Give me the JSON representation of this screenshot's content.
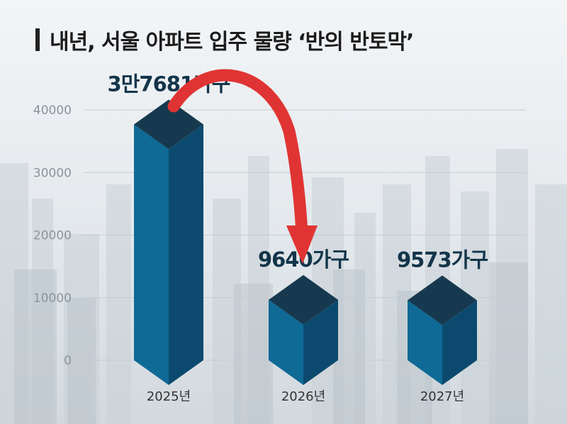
{
  "title": "내년, 서울 아파트 입주 물량 ‘반의 반토막’",
  "chart_data": {
    "type": "bar",
    "categories": [
      "2025년",
      "2026년",
      "2027년"
    ],
    "values": [
      37681,
      9640,
      9573
    ],
    "data_labels": [
      "3만7681가구",
      "9640가구",
      "9573가구"
    ],
    "yticks": [
      0,
      10000,
      20000,
      30000,
      40000
    ],
    "ylim": [
      0,
      40000
    ],
    "grid": true,
    "annotation": "red curved arrow from 2025 bar to 2026 bar"
  },
  "colors": {
    "bar_front": "#0f6a96",
    "bar_side": "#0b4a6e",
    "bar_top": "#17394f",
    "arrow": "#e03434",
    "grid": "#c4ccd2",
    "label": "#13354a"
  }
}
